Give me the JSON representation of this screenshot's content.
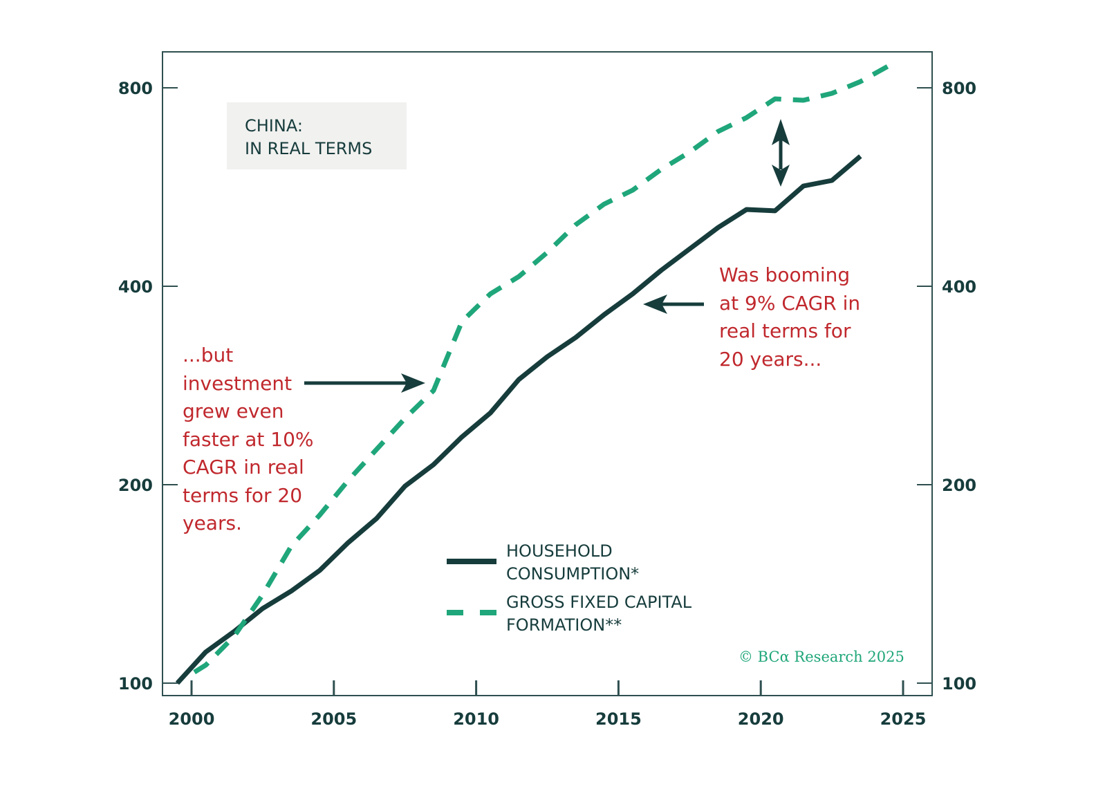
{
  "colors": {
    "household": "#173c3c",
    "gfcf": "#1fa67a",
    "annotation": "#c0282d",
    "frame": "#2f4f4f"
  },
  "chart_data": {
    "type": "line",
    "title": "CHINA:\nIN REAL TERMS",
    "title_lines": [
      "CHINA:",
      "IN REAL TERMS"
    ],
    "xlabel": "",
    "ylabel": "",
    "x_ticks": [
      "2000",
      "2005",
      "2010",
      "2015",
      "2020",
      "2025"
    ],
    "y_ticks": [
      "100",
      "200",
      "400",
      "800"
    ],
    "y_scale": "log",
    "xlim": [
      1999,
      2026
    ],
    "ylim": [
      96,
      905
    ],
    "grid": false,
    "legend_placement": "bottom-center",
    "series": [
      {
        "name": "HOUSEHOLD CONSUMPTION*",
        "style": "solid",
        "x": [
          1999.5,
          2000.5,
          2001.5,
          2002.5,
          2003.5,
          2004.5,
          2005.5,
          2006.5,
          2007.5,
          2008.5,
          2009.5,
          2010.5,
          2011.5,
          2012.5,
          2013.5,
          2014.5,
          2015.5,
          2016.5,
          2017.5,
          2018.5,
          2019.5,
          2020.5,
          2021.5,
          2022.5,
          2023.5
        ],
        "y": [
          100,
          111.5,
          119.8,
          129.8,
          137.9,
          148.2,
          163.3,
          177.7,
          199,
          214.5,
          236.3,
          257,
          288.8,
          312.7,
          334.5,
          362.3,
          389.5,
          422.8,
          455.7,
          491,
          523,
          520.6,
          567.7,
          578.8,
          630
        ]
      },
      {
        "name": "GROSS FIXED CAPITAL FORMATION**",
        "style": "dashed",
        "x": [
          2000.1,
          2000.5,
          2001.5,
          2002.5,
          2003.5,
          2004.5,
          2005.5,
          2006.5,
          2007.5,
          2008.5,
          2009.5,
          2010.5,
          2011.5,
          2012.5,
          2013.5,
          2014.5,
          2015.5,
          2016.5,
          2017.5,
          2018.5,
          2019.5,
          2020.5,
          2021.5,
          2022.5,
          2023.5,
          2024.5
        ],
        "y": [
          103.9,
          106.5,
          117.8,
          136.2,
          161.3,
          179.8,
          202.9,
          226.2,
          252.2,
          277.8,
          353.6,
          389.5,
          413.8,
          450.3,
          496,
          533,
          559.6,
          601.6,
          639,
          687,
          721,
          769.6,
          766,
          784.7,
          817.6,
          864
        ]
      }
    ],
    "legend": [
      {
        "lines": [
          "HOUSEHOLD",
          "CONSUMPTION*"
        ]
      },
      {
        "lines": [
          "GROSS FIXED CAPITAL",
          "FORMATION**"
        ]
      }
    ],
    "annotations": {
      "left": [
        "...but",
        "investment",
        "grew even",
        "faster at 10%",
        "CAGR in real",
        "terms for 20",
        "years."
      ],
      "right": [
        "Was booming",
        "at 9% CAGR in",
        "real terms for",
        "20 years..."
      ]
    },
    "copyright": "© BCα Research 2025"
  }
}
